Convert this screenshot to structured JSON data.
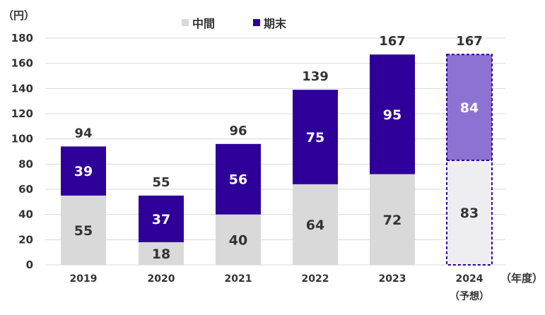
{
  "chart_data": {
    "type": "bar",
    "stacked": true,
    "categories": [
      "2019",
      "2020",
      "2021",
      "2022",
      "2023",
      "2024"
    ],
    "category_notes": [
      "",
      "",
      "",
      "",
      "",
      "（予想）"
    ],
    "series": [
      {
        "name": "中間",
        "values": [
          55,
          18,
          40,
          64,
          72,
          83
        ]
      },
      {
        "name": "期末",
        "values": [
          39,
          37,
          56,
          75,
          95,
          84
        ]
      }
    ],
    "totals": [
      94,
      55,
      96,
      139,
      167,
      167
    ],
    "forecast_index": 5,
    "ylabel": "（円）",
    "xlabel": "（年度）",
    "ylim": [
      0,
      180
    ],
    "yticks": [
      0,
      20,
      40,
      60,
      80,
      100,
      120,
      140,
      160,
      180
    ],
    "grid": true,
    "legend_position": "top-center",
    "colors": {
      "interim": "#d9d9d9",
      "final": "#2e0099",
      "forecast_interim": "#eeeef2",
      "forecast_final": "#8c73d3",
      "forecast_border": "#2e0099",
      "grid": "#d9d9d9",
      "text": "#333333"
    }
  }
}
